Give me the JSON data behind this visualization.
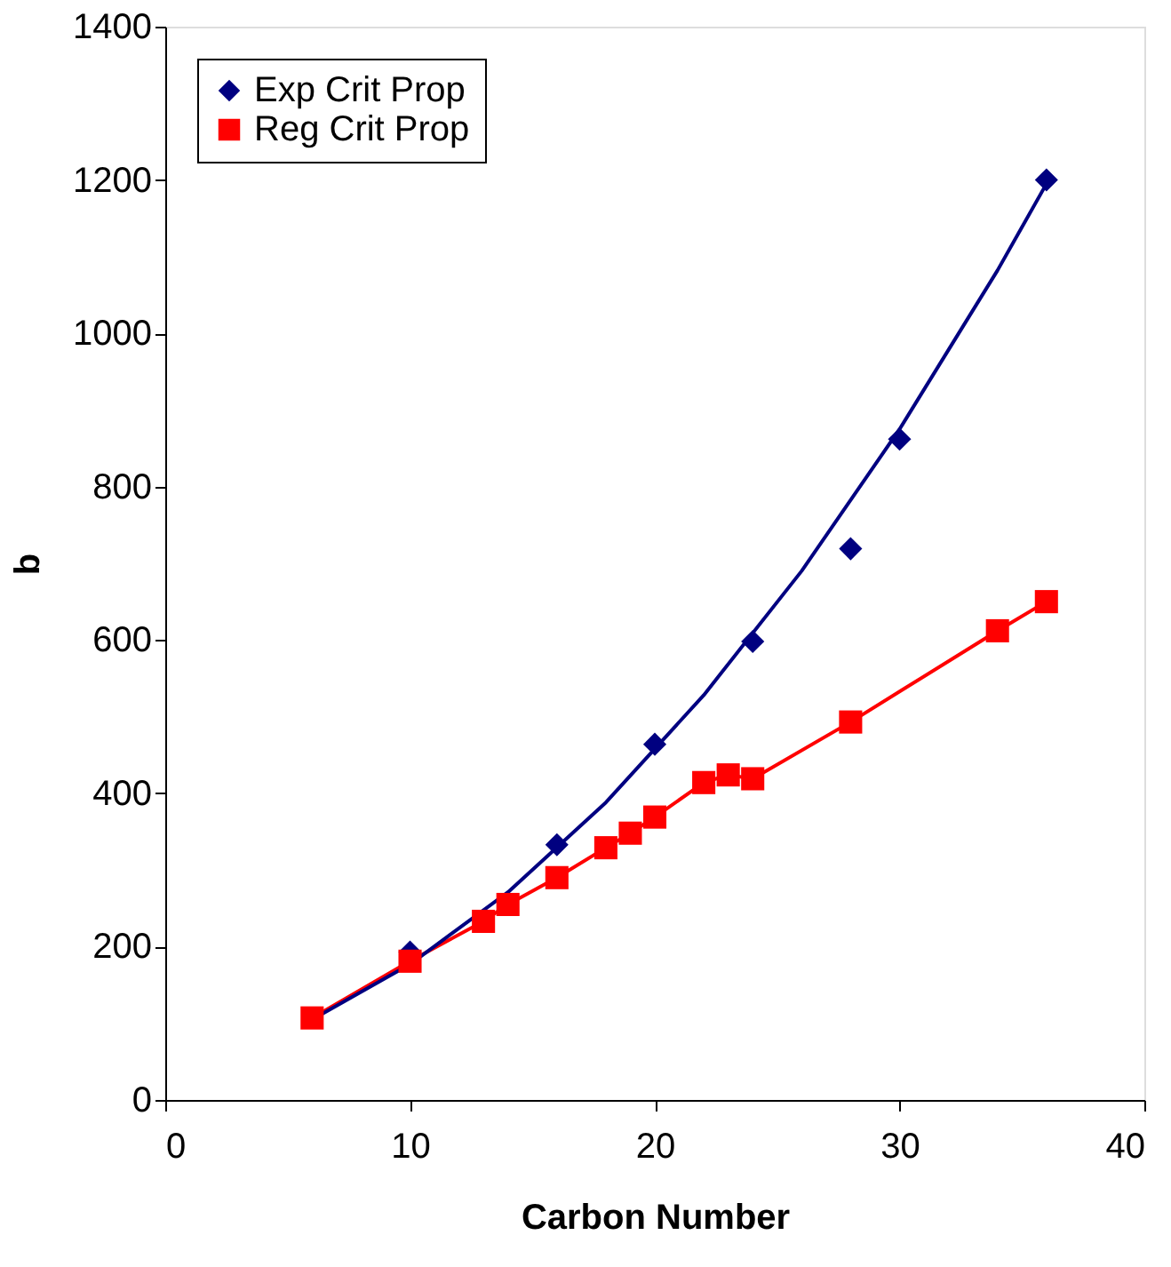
{
  "chart_data": {
    "type": "scatter",
    "xlabel": "Carbon Number",
    "ylabel": "b",
    "xlim": [
      0,
      40
    ],
    "ylim": [
      0,
      1400
    ],
    "xticks": [
      0,
      10,
      20,
      30,
      40
    ],
    "yticks": [
      0,
      200,
      400,
      600,
      800,
      1000,
      1200,
      1400
    ],
    "grid": false,
    "legend": "top left",
    "series": [
      {
        "name": "Exp Crit Prop",
        "marker": "diamond",
        "color": "#000080",
        "x": [
          10,
          16,
          20,
          24,
          28,
          30,
          36
        ],
        "values": [
          193,
          333,
          464,
          598,
          719,
          862,
          1200
        ]
      },
      {
        "name": "Reg Crit Prop",
        "type": "line",
        "marker": "square",
        "color": "#ff0000",
        "x": [
          6,
          10,
          13,
          14,
          16,
          18,
          19,
          20,
          22,
          23,
          24,
          28,
          34,
          36
        ],
        "values": [
          107,
          181,
          233,
          255,
          290,
          329,
          348,
          369,
          414,
          424,
          419,
          493,
          612,
          650
        ]
      },
      {
        "type": "line",
        "marker": "none",
        "color": "#000080",
        "x": [
          6,
          10,
          14,
          18,
          22,
          26,
          30,
          34,
          36
        ],
        "values": [
          105,
          177,
          271,
          388,
          528,
          690,
          875,
          1082,
          1195
        ]
      }
    ]
  }
}
